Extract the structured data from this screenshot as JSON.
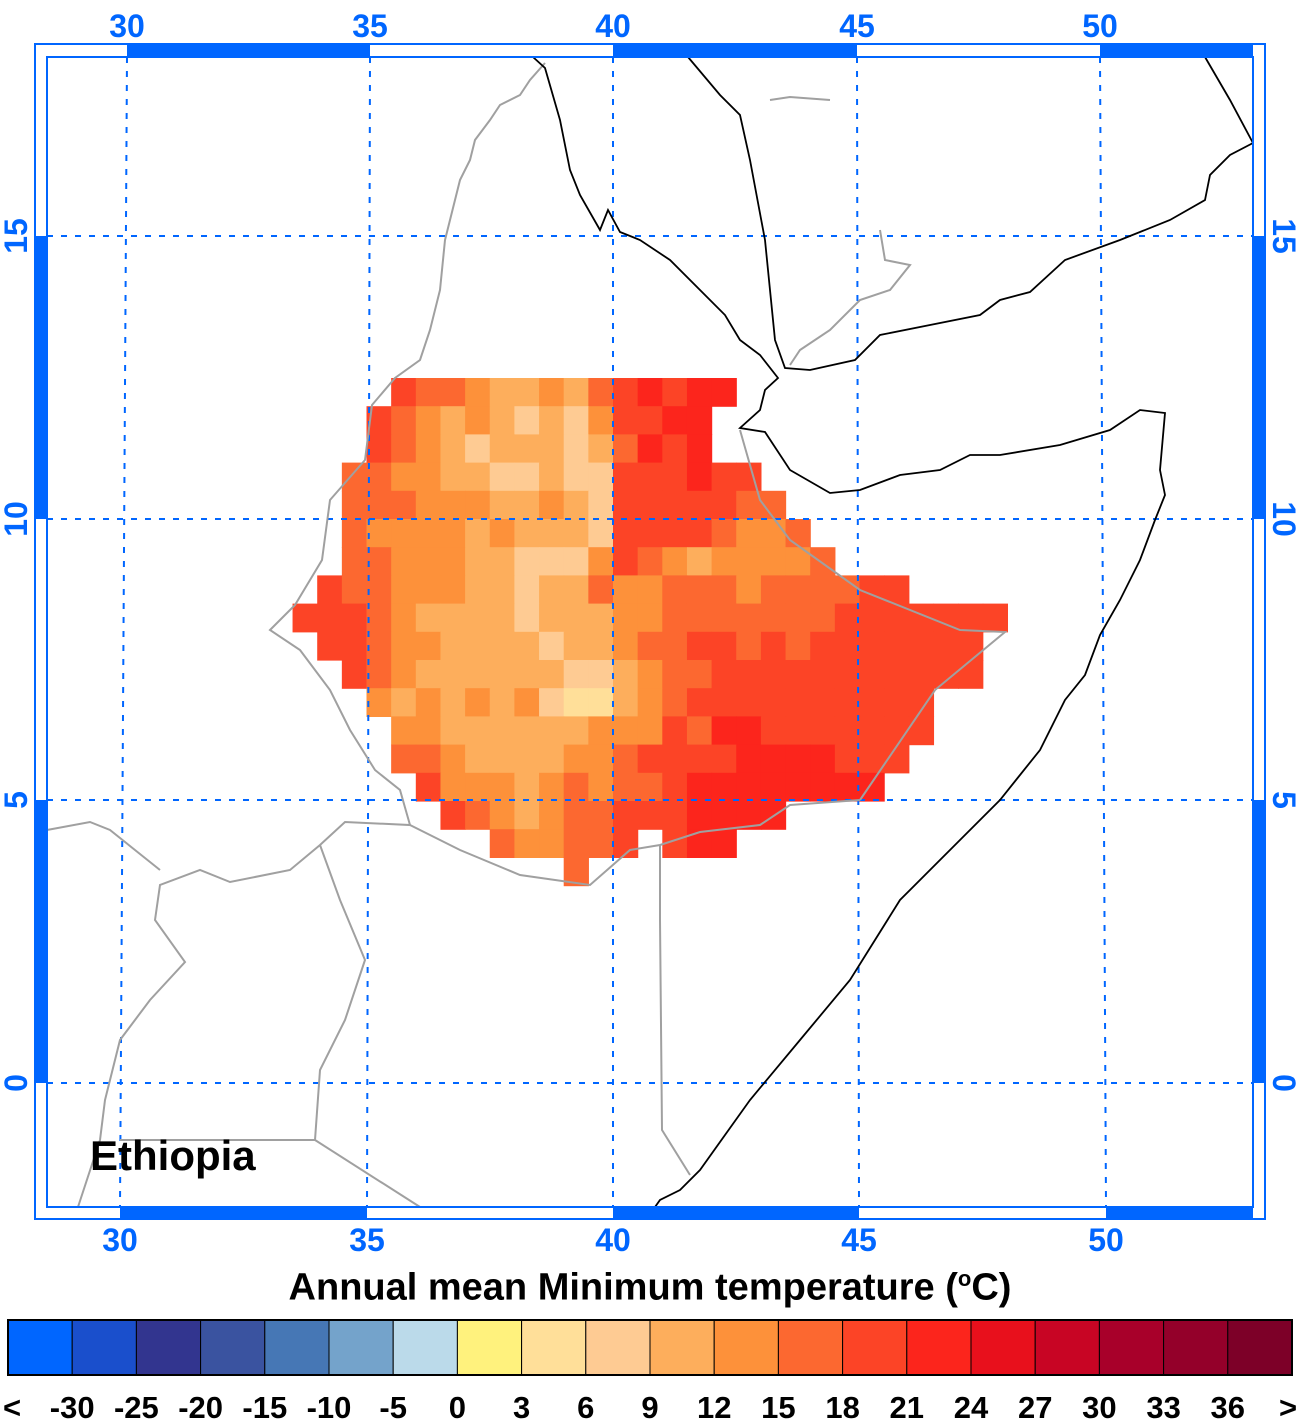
{
  "title": {
    "text": "Annual mean Minimum temperature (",
    "unit_sup": "o",
    "unit_end": "C)"
  },
  "region_label": "Ethiopia",
  "axes": {
    "lon_ticks": [
      "30",
      "35",
      "40",
      "45",
      "50"
    ],
    "lat_ticks": [
      "15",
      "10",
      "5",
      "0"
    ],
    "color": "#0066ff"
  },
  "colorbar": {
    "colors": [
      "#0066ff",
      "#1a4fcc",
      "#32358f",
      "#3a53a0",
      "#4677b5",
      "#74a3cb",
      "#bbdaea",
      "#fff27d",
      "#ffdf99",
      "#fecb93",
      "#fdae5c",
      "#fd913a",
      "#fc6830",
      "#fc4426",
      "#fc251c",
      "#e8101c",
      "#c80524",
      "#a8002a",
      "#94002a",
      "#7d0028"
    ],
    "labels": [
      "<",
      "-30",
      "-25",
      "-20",
      "-15",
      "-10",
      "-5",
      "0",
      "3",
      "6",
      "9",
      "12",
      "15",
      "18",
      "21",
      "24",
      "27",
      "30",
      "33",
      "36",
      ">"
    ]
  },
  "grid": {
    "lon_start": 33.5,
    "lat_top": 12.5,
    "resolution_deg": 0.5,
    "class_map": {
      "a": 8,
      "b": 9,
      "c": 10,
      "d": 11,
      "e": 12,
      "f": 13,
      "g": 14
    },
    "rows": [
      "....feedccdcefgfgg",
      "...fedcdcbcbdffgg",
      "...fedcbcccbcegfg",
      "..eeddccbbcbbfffgff",
      "..eeedddccdcbfffffee",
      "..eddddcdcccbffffedde",
      "..eedddccbbbdfedcdddde",
      ".feedddccbcceddeeedeeeeff",
      "fffedccccbcccddeeeeeeefffffff",
      ".ffeddccccbccdeeffefefffffff",
      "..fedccccccbbcdeefffffffffff",
      "...dcdcdcdbaacdeffffffffff",
      "....ddccccccdddfeggfffffff",
      "....eedccccddeffffggggfff",
      ".....fdddcdedeefgggggggg",
      "......fedcdeefffgggg",
      "........eddeef.fgg",
      "...........e"
    ]
  }
}
